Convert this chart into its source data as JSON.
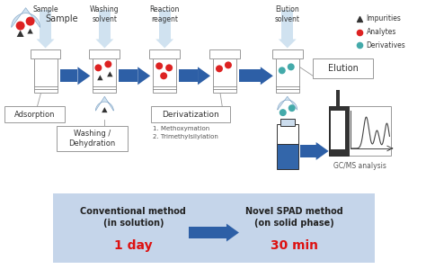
{
  "bg_color": "#ffffff",
  "bottom_box_color": "#c5d5ea",
  "text_black": "#222222",
  "text_red": "#dd1111",
  "arrow_blue": "#2d5fa6",
  "drop_color": "#b8cfe0",
  "legend_impurities": "Impurities",
  "legend_analytes": "Analytes",
  "legend_derivatives": "Derivatives",
  "conventional_text": "Conventional method\n(in solution)",
  "conventional_time": "1 day",
  "novel_text": "Novel SPAD method\n(on solid phase)",
  "novel_time": "30 min",
  "derivatization_sub": "1. Methoxymation\n2. Trimethylsilylation",
  "elution_label": "Elution",
  "gc_label": "GC/MS analysis"
}
